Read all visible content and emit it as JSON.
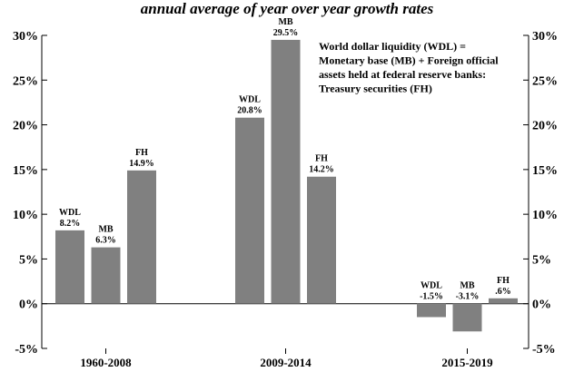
{
  "header": {
    "subtitle": "annual average of year over year growth rates"
  },
  "note": {
    "lines": [
      "World dollar liquidity (WDL) =",
      "Monetary base (MB) + Foreign official",
      "assets held at federal reserve banks:",
      "Treasury securities (FH)"
    ]
  },
  "colors": {
    "bar": "#808080",
    "axis": "#000000",
    "text": "#000000"
  },
  "chart_data": {
    "type": "bar",
    "subtitle": "annual average of year over year growth rates",
    "categories": [
      "1960-2008",
      "2009-2014",
      "2015-2019"
    ],
    "series_names": [
      "WDL",
      "MB",
      "FH"
    ],
    "values": [
      [
        8.2,
        6.3,
        14.9
      ],
      [
        20.8,
        29.5,
        14.2
      ],
      [
        -1.5,
        -3.1,
        0.6
      ]
    ],
    "bar_labels": [
      [
        "8.2%",
        "6.3%",
        "14.9%"
      ],
      [
        "20.8%",
        "29.5%",
        "14.2%"
      ],
      [
        "-1.5%",
        "-3.1%",
        ".6%"
      ]
    ],
    "ylim": [
      -5,
      30
    ],
    "yticks": [
      -5,
      0,
      5,
      10,
      15,
      20,
      25,
      30
    ],
    "ytick_labels": [
      "-5%",
      "0%",
      "5%",
      "10%",
      "15%",
      "20%",
      "25%",
      "30%"
    ],
    "secondary_y_axis": true,
    "grid": false
  }
}
